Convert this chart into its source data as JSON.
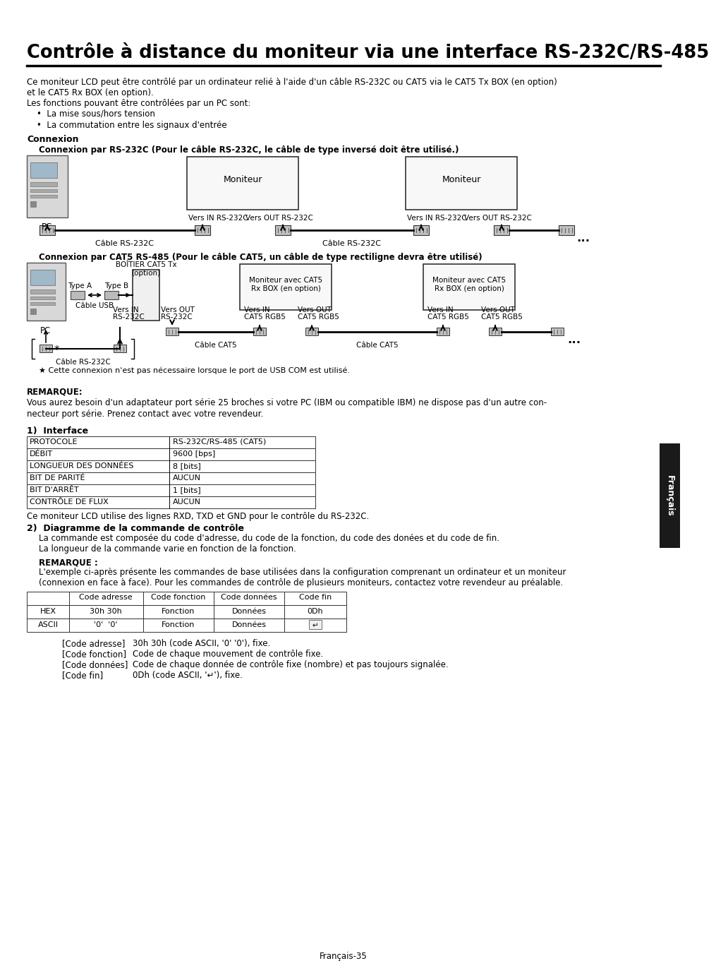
{
  "title": "Contrôle à distance du moniteur via une interface RS-232C/RS-485",
  "body_lines": [
    "Ce moniteur LCD peut être contrôlé par un ordinateur relié à l'aide d'un câble RS-232C ou CAT5 via le CAT5 Tx BOX (en option)",
    "et le CAT5 Rx BOX (en option).",
    "Les fonctions pouvant être contrôlées par un PC sont:"
  ],
  "bullets": [
    "La mise sous/hors tension",
    "La commutation entre les signaux d'entrée"
  ],
  "connexion_title": "Connexion",
  "rs232_subtitle": "Connexion par RS-232C (Pour le câble RS-232C, le câble de type inversé doit être utilisé.)",
  "cat5_subtitle": "Connexion par CAT5 RS-485 (Pour le câble CAT5, un câble de type rectiligne devra être utilisé)",
  "remarque1_title": "REMARQUE:",
  "remarque1_lines": [
    "Vous aurez besoin d'un adaptateur port série 25 broches si votre PC (IBM ou compatible IBM) ne dispose pas d'un autre con-",
    "necteur port série. Prenez contact avec votre revendeur."
  ],
  "s1_title": "1)  Interface",
  "table1": [
    [
      "PROTOCOLE",
      "RS-232C/RS-485 (CAT5)"
    ],
    [
      "DÉBIT",
      "9600 [bps]"
    ],
    [
      "LONGUEUR DES DONNÉES",
      "8 [bits]"
    ],
    [
      "BIT DE PARITÉ",
      "AUCUN"
    ],
    [
      "BIT D'ARRÊT",
      "1 [bits]"
    ],
    [
      "CONTRÔLE DE FLUX",
      "AUCUN"
    ]
  ],
  "lcd_note": "Ce moniteur LCD utilise des lignes RXD, TXD et GND pour le contrôle du RS-232C.",
  "s2_title": "2)  Diagramme de la commande de contrôle",
  "diag_lines": [
    "La commande est composée du code d'adresse, du code de la fonction, du code des donées et du code de fin.",
    "La longueur de la commande varie en fonction de la fonction."
  ],
  "remarque2_title": "REMARQUE :",
  "remarque2_lines": [
    "L'exemple ci-après présente les commandes de base utilisées dans la configuration comprenant un ordinateur et un moniteur",
    "(connexion en face à face). Pour les commandes de contrôle de plusieurs moniteurs, contactez votre revendeur au préalable."
  ],
  "table2_headers": [
    "",
    "Code adresse",
    "Code fonction",
    "Code données",
    "Code fin"
  ],
  "table2_rows": [
    [
      "HEX",
      "30h 30h",
      "Fonction",
      "Données",
      "0Dh"
    ],
    [
      "ASCII",
      "'0'  '0'",
      "Fonction",
      "Données",
      "↵"
    ]
  ],
  "code_notes": [
    [
      "[Code adresse]",
      "30h 30h (code ASCII, '0' '0'), fixe."
    ],
    [
      "[Code fonction]",
      "Code de chaque mouvement de contrôle fixe."
    ],
    [
      "[Code données]",
      "Code de chaque donnée de contrôle fixe (nombre) et pas toujours signalée."
    ],
    [
      "[Code fin]",
      "0Dh (code ASCII, '↵'), fixe."
    ]
  ],
  "footer": "Français-35",
  "sidebar": "Français",
  "star_note": "★ Cette connexion n'est pas nécessaire lorsque le port de USB COM est utilisé.",
  "boitier_label_line1": "BOÎTIER CAT5 Tx",
  "boitier_label_line2": "(option)"
}
